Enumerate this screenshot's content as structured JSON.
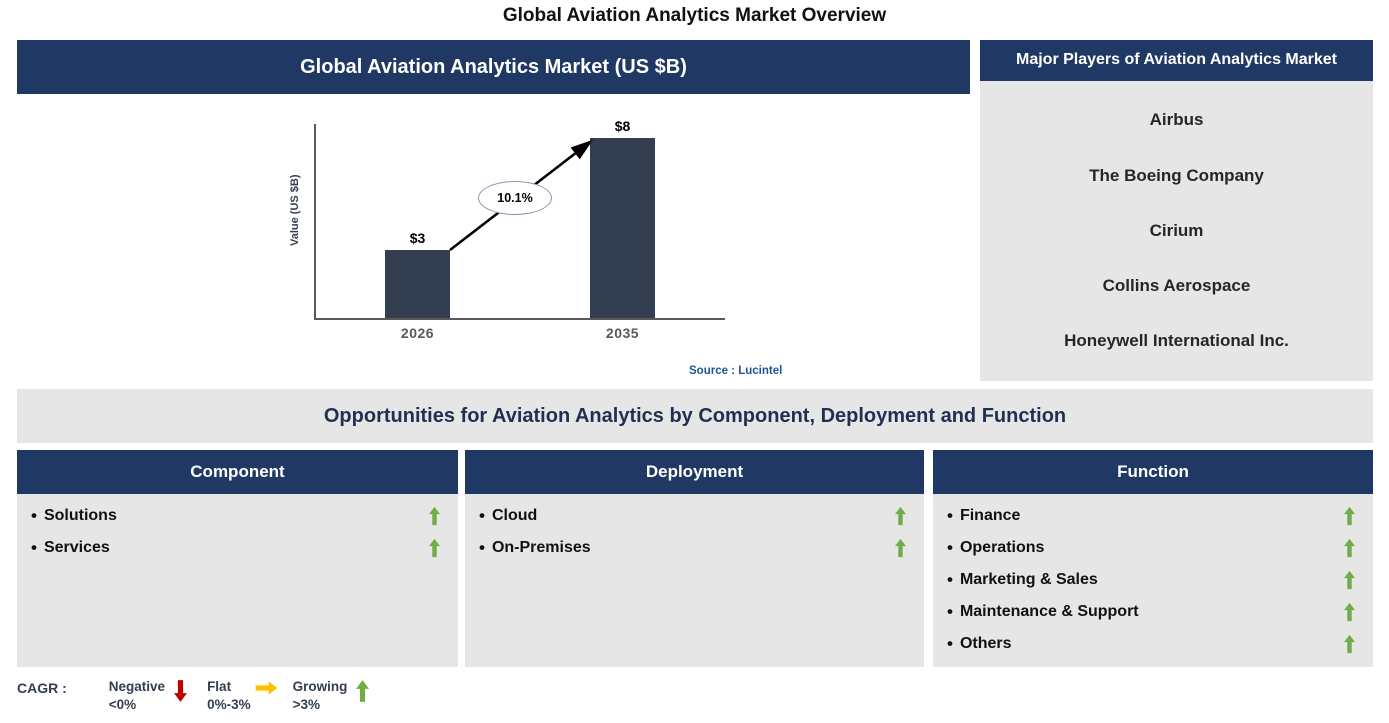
{
  "page": {
    "title": "Global Aviation Analytics Market Overview"
  },
  "chart_panel": {
    "title": "Global Aviation Analytics Market (US $B)",
    "source": "Source : Lucintel"
  },
  "chart_data": {
    "type": "bar",
    "title": "Global Aviation Analytics Market (US $B)",
    "categories": [
      "2026",
      "2035"
    ],
    "values": [
      3,
      8
    ],
    "value_labels": [
      "$3",
      "$8"
    ],
    "ylabel": "Value (US $B)",
    "xlabel": "",
    "ylim": [
      0,
      8
    ],
    "grid": false,
    "legend_position": "none",
    "annotations": [
      "10.1%"
    ],
    "cagr": "10.1%",
    "bar_color": "#333F50",
    "source": "Source : Lucintel"
  },
  "players": {
    "title": "Major Players of Aviation Analytics Market",
    "items": [
      "Airbus",
      "The Boeing Company",
      "Cirium",
      "Collins Aerospace",
      "Honeywell International Inc."
    ]
  },
  "opportunities": {
    "title": "Opportunities for Aviation Analytics by Component, Deployment and Function",
    "columns": [
      {
        "header": "Component",
        "items": [
          {
            "label": "Solutions",
            "trend": "up"
          },
          {
            "label": "Services",
            "trend": "up"
          }
        ]
      },
      {
        "header": "Deployment",
        "items": [
          {
            "label": "Cloud",
            "trend": "up"
          },
          {
            "label": "On-Premises",
            "trend": "up"
          }
        ]
      },
      {
        "header": "Function",
        "items": [
          {
            "label": "Finance",
            "trend": "up"
          },
          {
            "label": "Operations",
            "trend": "up"
          },
          {
            "label": "Marketing & Sales",
            "trend": "up"
          },
          {
            "label": "Maintenance & Support",
            "trend": "up"
          },
          {
            "label": "Others",
            "trend": "up"
          }
        ]
      }
    ]
  },
  "legend": {
    "label": "CAGR :",
    "items": [
      {
        "name": "Negative",
        "range": "<0%",
        "direction": "down",
        "color": "#C00000"
      },
      {
        "name": "Flat",
        "range": "0%-3%",
        "direction": "right",
        "color": "#FFC000"
      },
      {
        "name": "Growing",
        "range": ">3%",
        "direction": "up",
        "color": "#70AD47"
      }
    ]
  },
  "colors": {
    "header_navy": "#203864",
    "panel_gray": "#E7E6E6",
    "bar_navy": "#333F50",
    "trend_green": "#70AD47",
    "source_blue": "#1F5597"
  }
}
